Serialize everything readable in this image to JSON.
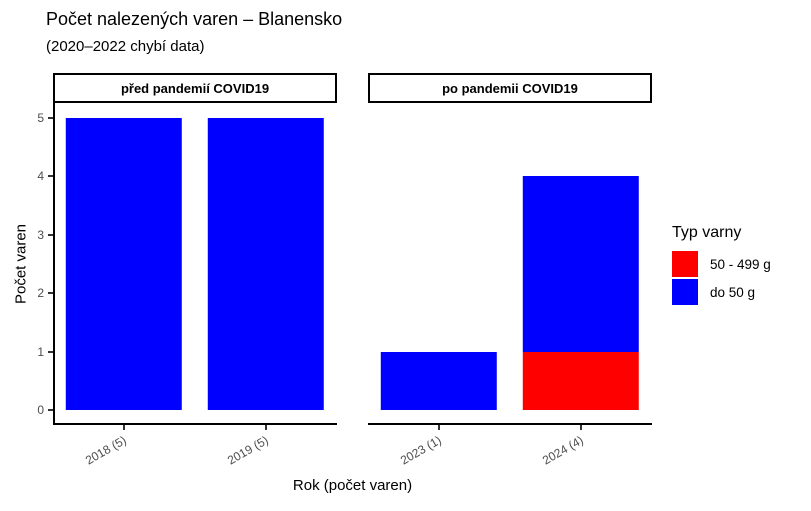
{
  "title": "Počet nalezených varen – Blanensko",
  "subtitle": "(2020–2022 chybí data)",
  "legend": {
    "title": "Typ varny",
    "items": [
      {
        "label": "50 - 499 g",
        "color": "#FF0000"
      },
      {
        "label": "do 50 g",
        "color": "#0000FF"
      }
    ]
  },
  "chart_data": {
    "type": "bar",
    "stacked": true,
    "title": "Počet nalezených varen – Blanensko",
    "subtitle": "(2020–2022 chybí data)",
    "xlabel": "Rok (počet varen)",
    "ylabel": "Počet varen",
    "ylim": [
      0,
      5
    ],
    "yticks": [
      0,
      1,
      2,
      3,
      4,
      5
    ],
    "grid": false,
    "legend_position": "right",
    "legend_title": "Typ varny",
    "facets": [
      {
        "label": "před pandemií COVID19",
        "categories": [
          "2018 (5)",
          "2019 (5)"
        ],
        "series": [
          {
            "name": "50 - 499 g",
            "color": "#FF0000",
            "values": [
              0,
              0
            ]
          },
          {
            "name": "do 50 g",
            "color": "#0000FF",
            "values": [
              5,
              5
            ]
          }
        ],
        "totals": [
          5,
          5
        ]
      },
      {
        "label": "po pandemii COVID19",
        "categories": [
          "2023 (1)",
          "2024 (4)"
        ],
        "series": [
          {
            "name": "50 - 499 g",
            "color": "#FF0000",
            "values": [
              0,
              1
            ]
          },
          {
            "name": "do 50 g",
            "color": "#0000FF",
            "values": [
              1,
              3
            ]
          }
        ],
        "totals": [
          1,
          4
        ]
      }
    ],
    "colors": {
      "bar_blue": "#0000FF",
      "bar_red": "#FF0000",
      "tick_label": "#4D4D4D",
      "axis_line": "#000000",
      "strip_border": "#000000"
    }
  }
}
